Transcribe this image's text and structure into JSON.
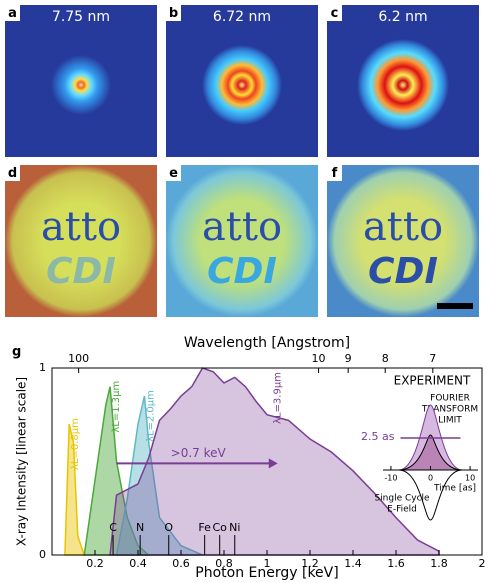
{
  "panels": [
    {
      "label": "a",
      "title": "7.75 nm"
    },
    {
      "label": "b",
      "title": "6.72 nm"
    },
    {
      "label": "c",
      "title": "6.2 nm"
    },
    {
      "label": "d",
      "words": [
        "atto",
        "CDI"
      ]
    },
    {
      "label": "e",
      "words": [
        "atto",
        "CDI"
      ]
    },
    {
      "label": "f",
      "words": [
        "atto",
        "CDI"
      ]
    }
  ],
  "chart_data": {
    "type": "area",
    "panel_label": "g",
    "title": "Wavelength [Angstrom]",
    "xlabel": "Photon Energy [keV]",
    "ylabel": "X-ray Intensity [linear scale]",
    "xlim": [
      0,
      2
    ],
    "xticks": [
      0.2,
      0.4,
      0.6,
      0.8,
      1,
      1.2,
      1.4,
      1.6,
      1.8,
      2
    ],
    "ylim": [
      0,
      1
    ],
    "yticks": [
      0,
      1
    ],
    "x2ticks": [
      100,
      10,
      9,
      8,
      7
    ],
    "series": [
      {
        "name": "λL=0.8µm",
        "color": "#e8c400",
        "x": [
          0.06,
          0.08,
          0.1,
          0.12,
          0.15
        ],
        "values": [
          0,
          0.7,
          0.6,
          0.1,
          0
        ]
      },
      {
        "name": "λL=1.3µm",
        "color": "#4aa83a",
        "x": [
          0.15,
          0.2,
          0.25,
          0.27,
          0.3,
          0.35,
          0.4,
          0.45
        ],
        "values": [
          0,
          0.4,
          0.8,
          0.9,
          0.5,
          0.2,
          0.05,
          0
        ]
      },
      {
        "name": "λL=2.0µm",
        "color": "#5fb8c8",
        "x": [
          0.3,
          0.35,
          0.4,
          0.43,
          0.45,
          0.5,
          0.6,
          0.7
        ],
        "values": [
          0,
          0.3,
          0.7,
          0.85,
          0.6,
          0.2,
          0.05,
          0
        ]
      },
      {
        "name": "λL=3.9µm",
        "color": "#7a3d94",
        "x": [
          0.27,
          0.3,
          0.35,
          0.4,
          0.45,
          0.5,
          0.55,
          0.6,
          0.65,
          0.7,
          0.75,
          0.8,
          0.85,
          0.9,
          0.95,
          1,
          1.1,
          1.2,
          1.3,
          1.4,
          1.5,
          1.6,
          1.7,
          1.8
        ],
        "values": [
          0,
          0.32,
          0.35,
          0.38,
          0.52,
          0.72,
          0.78,
          0.85,
          0.9,
          1,
          0.98,
          0.92,
          0.95,
          0.9,
          0.82,
          0.75,
          0.72,
          0.62,
          0.55,
          0.45,
          0.33,
          0.2,
          0.08,
          0.02
        ]
      }
    ],
    "edges": [
      {
        "label": "C",
        "value": 0.284
      },
      {
        "label": "N",
        "value": 0.41
      },
      {
        "label": "O",
        "value": 0.543
      },
      {
        "label": "Fe",
        "value": 0.71
      },
      {
        "label": "Co",
        "value": 0.78
      },
      {
        "label": "Ni",
        "value": 0.85
      }
    ],
    "annotation": ">0.7 keV",
    "inset": {
      "title": "EXPERIMENT",
      "subtitle": [
        "FOURIER",
        "TRANSFORM",
        "LIMIT"
      ],
      "annotation": "2.5 as",
      "xlabel": "Time [as]",
      "xlim": [
        -12,
        12
      ],
      "xticks": [
        -10,
        0,
        10
      ],
      "caption": [
        "Single Cycle",
        "E-Field"
      ]
    }
  }
}
